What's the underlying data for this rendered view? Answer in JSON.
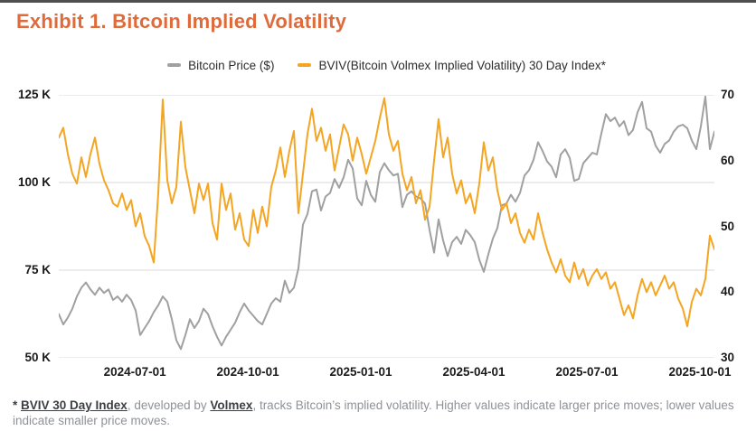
{
  "page": {
    "title": "Exhibit 1. Bitcoin Implied Volatility"
  },
  "colors": {
    "title": "#DE6B3C",
    "grid": "#D9D9D9",
    "axis_text": "#1A1A1A",
    "price_line": "#A0A0A0",
    "bviv_line": "#F4A522"
  },
  "chart_data": {
    "type": "line",
    "title": "Exhibit 1. Bitcoin Implied Volatility",
    "grid": "horizontal-only",
    "legend_position": "top-center",
    "x_axis": {
      "tick_labels": [
        "2024-07-01",
        "2024-10-01",
        "2025-01-01",
        "2025-04-01",
        "2025-07-01",
        "2025-10-01"
      ],
      "tick_pos": [
        0.116,
        0.2884,
        0.4607,
        0.6331,
        0.8055,
        0.9779
      ],
      "data_range": [
        "2024-05-01",
        "2025-10-10"
      ]
    },
    "left_axis": {
      "unit": "thousand USD",
      "range": [
        50,
        125
      ],
      "ticks": [
        {
          "label": "125 K",
          "value": 125
        },
        {
          "label": "100 K",
          "value": 100
        },
        {
          "label": "75 K",
          "value": 75
        },
        {
          "label": "50 K",
          "value": 50
        }
      ]
    },
    "right_axis": {
      "unit": "implied volatility index",
      "range": [
        30,
        70
      ],
      "ticks": [
        {
          "label": "70",
          "value": 70
        },
        {
          "label": "60",
          "value": 60
        },
        {
          "label": "50",
          "value": 50
        },
        {
          "label": "40",
          "value": 40
        },
        {
          "label": "30",
          "value": 30
        }
      ]
    },
    "series": [
      {
        "name": "Bitcoin Price ($)",
        "axis": "left",
        "color": "#A0A0A0",
        "values": [
          62.5,
          59.5,
          61.5,
          64.0,
          67.5,
          70.0,
          71.5,
          69.5,
          68.0,
          70.0,
          68.5,
          69.5,
          66.5,
          67.5,
          66.0,
          68.0,
          66.5,
          63.5,
          56.5,
          58.5,
          60.5,
          63.0,
          65.0,
          67.5,
          66.0,
          61.0,
          55.0,
          52.5,
          56.5,
          61.0,
          58.5,
          60.5,
          64.0,
          62.5,
          59.0,
          56.0,
          53.5,
          56.0,
          58.0,
          60.0,
          63.0,
          65.5,
          63.5,
          62.0,
          60.5,
          59.5,
          62.5,
          65.5,
          67.0,
          66.0,
          72.0,
          68.5,
          70.0,
          75.5,
          88.0,
          91.0,
          97.5,
          98.0,
          92.0,
          96.0,
          97.0,
          101.0,
          98.5,
          101.5,
          106.5,
          104.0,
          95.5,
          93.5,
          100.5,
          96.5,
          94.5,
          103.0,
          105.5,
          103.5,
          102.0,
          102.5,
          93.0,
          96.5,
          97.5,
          96.0,
          95.5,
          94.0,
          86.5,
          80.0,
          89.5,
          83.5,
          79.0,
          83.0,
          84.5,
          82.5,
          86.5,
          85.0,
          83.0,
          78.0,
          74.5,
          79.5,
          84.0,
          87.0,
          93.5,
          94.0,
          96.5,
          94.5,
          97.0,
          102.0,
          103.5,
          106.5,
          111.5,
          109.0,
          106.0,
          104.5,
          101.5,
          108.0,
          109.5,
          107.0,
          100.5,
          101.0,
          105.5,
          107.0,
          108.5,
          108.0,
          114.0,
          119.5,
          117.5,
          118.5,
          116.0,
          117.5,
          113.5,
          115.0,
          120.0,
          123.0,
          115.5,
          114.5,
          110.5,
          108.5,
          111.0,
          112.0,
          114.5,
          116.0,
          116.5,
          115.5,
          112.0,
          109.5,
          116.0,
          124.5,
          109.5,
          114.5
        ]
      },
      {
        "name": "BVIV(Bitcoin Volmex Implied Volatility) 30 Day Index*",
        "axis": "right",
        "color": "#F4A522",
        "values": [
          63.5,
          65.0,
          61.0,
          58.0,
          56.5,
          60.5,
          57.5,
          61.0,
          63.5,
          59.5,
          57.0,
          55.5,
          53.5,
          53.0,
          55.0,
          52.5,
          54.0,
          50.0,
          52.0,
          48.5,
          47.0,
          44.5,
          55.0,
          69.3,
          57.0,
          53.5,
          56.0,
          65.9,
          59.0,
          55.5,
          52.0,
          56.5,
          54.0,
          56.5,
          50.5,
          48.0,
          56.5,
          52.5,
          55.0,
          49.5,
          52.0,
          48.0,
          47.0,
          52.5,
          49.0,
          53.0,
          50.0,
          56.0,
          58.5,
          62.0,
          57.5,
          61.5,
          64.5,
          52.0,
          58.0,
          64.0,
          67.9,
          63.0,
          65.0,
          61.5,
          64.0,
          58.5,
          62.0,
          65.5,
          64.0,
          60.0,
          63.5,
          61.0,
          58.0,
          60.5,
          63.0,
          66.5,
          69.5,
          64.0,
          61.5,
          63.0,
          58.0,
          55.5,
          57.5,
          53.5,
          55.5,
          51.0,
          53.0,
          60.0,
          66.3,
          60.5,
          63.5,
          58.0,
          55.0,
          57.0,
          53.5,
          55.0,
          52.0,
          56.5,
          62.8,
          58.5,
          60.5,
          55.5,
          52.5,
          53.5,
          50.5,
          52.0,
          49.0,
          47.5,
          49.5,
          48.0,
          52.0,
          49.0,
          46.5,
          44.5,
          43.0,
          45.0,
          42.5,
          41.5,
          44.5,
          42.0,
          43.5,
          41.0,
          42.5,
          43.5,
          42.0,
          43.0,
          40.5,
          41.5,
          39.0,
          36.5,
          38.0,
          36.0,
          39.5,
          42.0,
          40.0,
          41.5,
          39.5,
          41.0,
          42.5,
          40.5,
          41.5,
          39.0,
          37.5,
          34.8,
          38.5,
          40.5,
          39.5,
          42.0,
          48.6,
          46.5
        ]
      }
    ]
  },
  "footnote": {
    "segments": [
      {
        "text": "* ",
        "style": "dark"
      },
      {
        "text": "BVIV 30 Day Index",
        "style": "emphasis"
      },
      {
        "text": ", developed by ",
        "style": "normal"
      },
      {
        "text": "Volmex",
        "style": "emphasis"
      },
      {
        "text": ", tracks Bitcoin’s implied volatility. Higher values indicate larger price moves; lower values indicate smaller price moves.",
        "style": "normal"
      }
    ]
  }
}
